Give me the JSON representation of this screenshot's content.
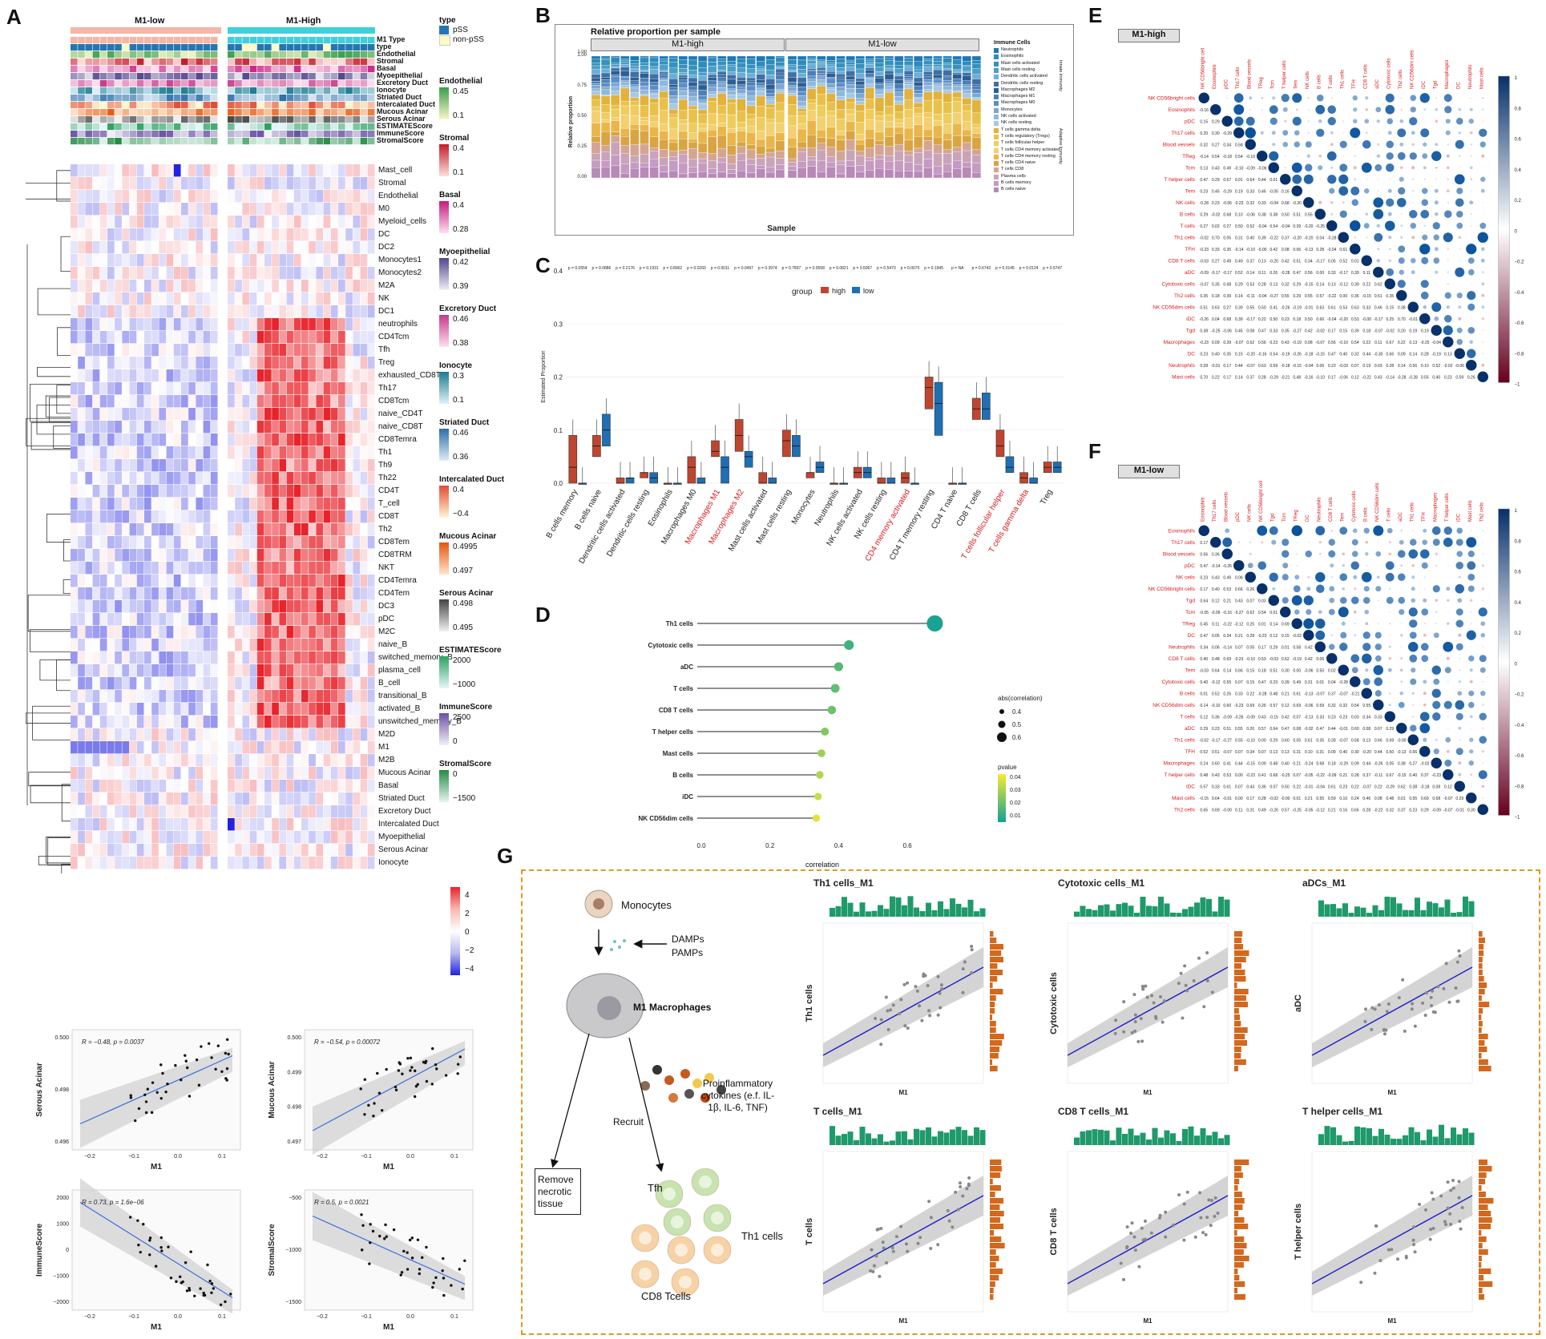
{
  "panels": {
    "A": "A",
    "B": "B",
    "C": "C",
    "D": "D",
    "E": "E",
    "F": "F",
    "G": "G"
  },
  "panelA": {
    "group_low": "M1-low",
    "group_high": "M1-High",
    "annotation_labels": [
      "M1 Type",
      "type",
      "Endothelial",
      "Stromal",
      "Basal",
      "Myoepithelial",
      "Excretory Duct",
      "Ionocyte",
      "Striated Duct",
      "Intercalated Duct",
      "Mucous Acinar",
      "Serous Acinar",
      "ESTIMATEScore",
      "ImmuneScore",
      "StromalScore"
    ],
    "row_labels": [
      "Mast_cell",
      "Stromal",
      "Endothelial",
      "M0",
      "Myeloid_cells",
      "DC",
      "DC2",
      "Monocytes1",
      "Monocytes2",
      "M2A",
      "NK",
      "DC1",
      "neutrophils",
      "CD4Tcm",
      "Tfh",
      "Treg",
      "exhausted_CD8T",
      "Th17",
      "CD8Tcm",
      "naive_CD4T",
      "naive_CD8T",
      "CD8Temra",
      "Th1",
      "Th9",
      "Th22",
      "CD4T",
      "T_cell",
      "CD8T",
      "Th2",
      "CD8Tem",
      "CD8TRM",
      "NKT",
      "CD4Temra",
      "CD4Tem",
      "DC3",
      "pDC",
      "M2C",
      "naive_B",
      "switched_memory_B",
      "plasma_cell",
      "B_cell",
      "transitional_B",
      "activated_B",
      "unswitched_memory_B",
      "M2D",
      "M1",
      "M2B",
      "Mucous Acinar",
      "Basal",
      "Striated Duct",
      "Excretory Duct",
      "Intercalated Duct",
      "Myoepithelial",
      "Serous Acinar",
      "Ionocyte"
    ],
    "legend": {
      "type_title": "type",
      "type_items": [
        "pSS",
        "non-pSS"
      ],
      "blocks": [
        {
          "title": "Endothelial",
          "hi": "0.45",
          "lo": "0.1",
          "c1": "#f7f7c8",
          "c2": "#3a9e4f"
        },
        {
          "title": "Stromal",
          "hi": "0.4",
          "lo": "0.1",
          "c1": "#fde0dd",
          "c2": "#c51b2a"
        },
        {
          "title": "Basal",
          "hi": "0.4",
          "lo": "0.28",
          "c1": "#fde0ef",
          "c2": "#c51b7d"
        },
        {
          "title": "Myoepithelial",
          "hi": "0.42",
          "lo": "0.39",
          "c1": "#efedf5",
          "c2": "#54478c"
        },
        {
          "title": "Excretory Duct",
          "hi": "0.46",
          "lo": "0.38",
          "c1": "#fde0ef",
          "c2": "#c5398a"
        },
        {
          "title": "Ionocyte",
          "hi": "0.3",
          "lo": "0.1",
          "c1": "#e0f3f8",
          "c2": "#1b7a8f"
        },
        {
          "title": "Striated Duct",
          "hi": "0.46",
          "lo": "0.36",
          "c1": "#deebf7",
          "c2": "#2b6fa8"
        },
        {
          "title": "Intercalated Duct",
          "hi": "0.4",
          "lo": "−0.4",
          "c1": "#fff7d6",
          "c2": "#e34a33"
        },
        {
          "title": "Mucous Acinar",
          "hi": "0.4995",
          "lo": "0.497",
          "c1": "#fee6ce",
          "c2": "#e6550d"
        },
        {
          "title": "Serous Acinar",
          "hi": "0.498",
          "lo": "0.495",
          "c1": "#f0f0f0",
          "c2": "#444444"
        },
        {
          "title": "ESTIMATEScore",
          "hi": "2000",
          "lo": "−1000",
          "c1": "#e5f5f9",
          "c2": "#2ca25f"
        },
        {
          "title": "ImmuneScore",
          "hi": "2500",
          "lo": "0",
          "c1": "#f2f0f7",
          "c2": "#6a51a3"
        },
        {
          "title": "StromalScore",
          "hi": "0",
          "lo": "−1500",
          "c1": "#e5f5f0",
          "c2": "#238b45"
        }
      ],
      "scale_ticks": [
        "4",
        "2",
        "0",
        "−2",
        "−4"
      ]
    },
    "scatter": [
      {
        "ylabel": "Serous Acinar",
        "xlabel": "M1",
        "stat": "R = −0.48, p = 0.0037",
        "yticks": [
          "0.500",
          "0.498",
          "0.496"
        ],
        "xticks": [
          "−0.2",
          "−0.1",
          "0.0",
          "0.1"
        ]
      },
      {
        "ylabel": "Mucous Acinar",
        "xlabel": "M1",
        "stat": "R = −0.54, p = 0.00072",
        "yticks": [
          "0.500",
          "0.499",
          "0.498",
          "0.497"
        ],
        "xticks": [
          "−0.2",
          "−0.1",
          "0.0",
          "0.1"
        ]
      },
      {
        "ylabel": "ImmuneScore",
        "xlabel": "M1",
        "stat": "R = 0.73, p = 1.6e−06",
        "yticks": [
          "2000",
          "1000",
          "0",
          "−1000",
          "−2000"
        ],
        "xticks": [
          "−0.2",
          "−0.1",
          "0.0",
          "0.1"
        ]
      },
      {
        "ylabel": "StromalScore",
        "xlabel": "M1",
        "stat": "R = 0.5, p = 0.0021",
        "yticks": [
          "−500",
          "−1000",
          "−1500"
        ],
        "xticks": [
          "−0.2",
          "−0.1",
          "0.0",
          "0.1"
        ]
      }
    ]
  },
  "panelB": {
    "title": "Relative proportion per sample",
    "facet_high": "M1-high",
    "facet_low": "M1-low",
    "ylabel": "Relative proportion",
    "xlabel": "Sample",
    "yticks": [
      "1.00",
      "0.75",
      "0.50",
      "0.25",
      "0.00"
    ],
    "legend_title": "Immune Cells",
    "legend_items": [
      "Neutrophils",
      "Eosinophils",
      "Mast cells activated",
      "Mast cells resting",
      "Dendritic cells activated",
      "Dendritic cells resting",
      "Macrophages M2",
      "Macrophages M1",
      "Macrophages M0",
      "Monocytes",
      "NK cells activated",
      "NK cells resting",
      "T cells gamma delta",
      "T cells regulatory (Tregs)",
      "T cells follicular helper",
      "T cells CD4 memory activated",
      "T cells CD4 memory resting",
      "T cells CD4 naive",
      "T cells CD8",
      "Plasma cells",
      "B cells memory",
      "B cells naive"
    ],
    "side_labels": [
      "Innate immunity",
      "Adaptive immunity"
    ]
  },
  "panelC": {
    "ylabel": "Estimated Proportion",
    "legend_title": "group",
    "legend_items": [
      "high",
      "low"
    ],
    "yticks": [
      "0.4",
      "0.3",
      "0.2",
      "0.1",
      "0.0"
    ],
    "pvals": [
      "p = 0.0554",
      "p = 0.0886",
      "p = 0.2176",
      "p = 0.1931",
      "p = 0.8962",
      "p = 0.0260",
      "p = 0.0011",
      "p = 0.0497",
      "p = 0.3974",
      "p = 0.7897",
      "p = 0.0558",
      "p = 0.0821",
      "p = 0.5067",
      "p = 0.5470",
      "p = 0.0075",
      "p = 0.1945",
      "p = NA",
      "p = 0.6743",
      "p = 0.0145",
      "p = 0.0124",
      "p = 0.5747"
    ],
    "categories": [
      "B cells memory",
      "B cells naive",
      "Dendritic cells activated",
      "Dendritic cells resting",
      "Eosinophils",
      "Macrophages M0",
      "Macrophages M1",
      "Macrophages M2",
      "Mast cells activated",
      "Mast cells resting",
      "Monocytes",
      "Neutrophils",
      "NK cells activated",
      "NK cells resting",
      "CD4 memory activated",
      "CD4 T memory resting",
      "CD4 T naive",
      "CD8 T cells",
      "T cells follicular helper",
      "T cells gamma delta",
      "Treg"
    ]
  },
  "panelD": {
    "xlabel": "correlation",
    "xticks": [
      "0.0",
      "0.2",
      "0.4",
      "0.6"
    ],
    "size_title": "abs(correlation)",
    "size_items": [
      "0.4",
      "0.5",
      "0.6"
    ],
    "color_title": "pvalue",
    "color_ticks": [
      "0.04",
      "0.03",
      "0.02",
      "0.01"
    ],
    "categories": [
      "Th1 cells",
      "Cytotoxic cells",
      "aDC",
      "T cells",
      "CD8 T cells",
      "T helper cells",
      "Mast cells",
      "B cells",
      "iDC",
      "NK CD56dim cells"
    ]
  },
  "panelE": {
    "title": "M1-high",
    "labels": [
      "NK CD56bright cells",
      "Eosinophils",
      "pDC",
      "Th17 cells",
      "Blood vessels",
      "TReg",
      "Tcm",
      "T helper cells",
      "Tem",
      "NK cells",
      "B cells",
      "T cells",
      "Th1 cells",
      "TFH",
      "CD8 T cells",
      "aDC",
      "Cytotoxic cells",
      "Th2 cells",
      "NK CD56dim cells",
      "iDC",
      "Tgd",
      "Macrophages",
      "DC",
      "Neutrophils",
      "Mast cells"
    ],
    "scale_ticks": [
      "1",
      "0.8",
      "0.6",
      "0.4",
      "0.2",
      "0",
      "−0.2",
      "−0.4",
      "−0.6",
      "−0.8",
      "−1"
    ]
  },
  "panelF": {
    "title": "M1-low",
    "labels": [
      "Eosinophils",
      "Th17 cells",
      "Blood vessels",
      "pDC",
      "NK cells",
      "NK CD56bright cells",
      "Tgd",
      "Tcm",
      "TReg",
      "DC",
      "Neutrophils",
      "CD8 T cells",
      "Tem",
      "Cytotoxic cells",
      "B cells",
      "NK CD56dim cells",
      "T cells",
      "aDC",
      "Th1 cells",
      "TFH",
      "Macrophages",
      "T helper cells",
      "iDC",
      "Mast cells",
      "Th2 cells"
    ],
    "scale_ticks": [
      "1",
      "0.8",
      "0.6",
      "0.4",
      "0.2",
      "0",
      "−0.2",
      "−0.4",
      "−0.6",
      "−0.8",
      "−1"
    ]
  },
  "panelG": {
    "monocytes": "Monocytes",
    "damps": "DAMPs",
    "pamps": "PAMPs",
    "m1": "M1 Macrophages",
    "cytokines": "Proinflammatory cytokines (e.f. IL-1β, IL-6, TNF)",
    "recruit": "Recruit",
    "remove": "Remove necrotic tissue",
    "tfh": "Tfh",
    "th1": "Th1 cells",
    "cd8": "CD8 Tcells",
    "plots": [
      {
        "title": "Th1 cells_M1",
        "ylabel": "Th1 cells"
      },
      {
        "title": "Cytotoxic cells_M1",
        "ylabel": "Cytotoxic cells"
      },
      {
        "title": "aDCs_M1",
        "ylabel": "aDC"
      },
      {
        "title": "T cells_M1",
        "ylabel": "T cells"
      },
      {
        "title": "CD8 T cells_M1",
        "ylabel": "CD8 T cells"
      },
      {
        "title": "T helper cells_M1",
        "ylabel": "T helper cells"
      }
    ],
    "xlabel": "M1"
  },
  "chart_data": [
    {
      "type": "bar",
      "id": "C-boxplot",
      "title": "",
      "ylabel": "Estimated Proportion",
      "ylim": [
        0,
        0.4
      ],
      "categories": [
        "B cells memory",
        "B cells naive",
        "Dendritic cells activated",
        "Dendritic cells resting",
        "Eosinophils",
        "Macrophages M0",
        "Macrophages M1",
        "Macrophages M2",
        "Mast cells activated",
        "Mast cells resting",
        "Monocytes",
        "Neutrophils",
        "NK cells activated",
        "NK cells resting",
        "CD4 memory activated",
        "CD4 T memory resting",
        "CD4 T naive",
        "CD8 T cells",
        "T cells follicular helper",
        "T cells gamma delta",
        "Treg"
      ],
      "series": [
        {
          "name": "high",
          "q1": [
            0.0,
            0.05,
            0.0,
            0.01,
            0.0,
            0.0,
            0.05,
            0.06,
            0.0,
            0.05,
            0.01,
            0.0,
            0.01,
            0.0,
            0.0,
            0.14,
            0.0,
            0.12,
            0.05,
            0.0,
            0.02
          ],
          "median": [
            0.03,
            0.07,
            0.0,
            0.02,
            0.0,
            0.03,
            0.06,
            0.09,
            0.0,
            0.08,
            0.02,
            0.0,
            0.02,
            0.0,
            0.01,
            0.18,
            0.0,
            0.14,
            0.07,
            0.01,
            0.03
          ],
          "q3": [
            0.09,
            0.09,
            0.01,
            0.02,
            0.0,
            0.05,
            0.08,
            0.12,
            0.02,
            0.1,
            0.02,
            0.0,
            0.03,
            0.01,
            0.02,
            0.2,
            0.0,
            0.16,
            0.1,
            0.02,
            0.04
          ]
        },
        {
          "name": "low",
          "q1": [
            0.0,
            0.07,
            0.0,
            0.0,
            0.0,
            0.0,
            0.0,
            0.03,
            0.0,
            0.05,
            0.02,
            0.0,
            0.01,
            0.0,
            0.0,
            0.09,
            0.0,
            0.12,
            0.02,
            0.0,
            0.02
          ],
          "median": [
            0.0,
            0.1,
            0.01,
            0.01,
            0.0,
            0.0,
            0.03,
            0.05,
            0.0,
            0.07,
            0.03,
            0.0,
            0.02,
            0.0,
            0.0,
            0.15,
            0.0,
            0.14,
            0.03,
            0.0,
            0.03
          ],
          "q3": [
            0.0,
            0.13,
            0.01,
            0.02,
            0.0,
            0.01,
            0.05,
            0.06,
            0.01,
            0.09,
            0.04,
            0.0,
            0.03,
            0.01,
            0.0,
            0.19,
            0.0,
            0.17,
            0.05,
            0.01,
            0.04
          ]
        }
      ]
    },
    {
      "type": "scatter",
      "id": "D-lollipop",
      "title": "",
      "xlabel": "correlation",
      "xlim": [
        0,
        0.7
      ],
      "categories": [
        "Th1 cells",
        "Cytotoxic cells",
        "aDC",
        "T cells",
        "CD8 T cells",
        "T helper cells",
        "Mast cells",
        "B cells",
        "iDC",
        "NK CD56dim cells"
      ],
      "values": [
        0.68,
        0.43,
        0.4,
        0.39,
        0.38,
        0.36,
        0.35,
        0.345,
        0.34,
        0.335
      ],
      "pvalue": [
        0.001,
        0.01,
        0.015,
        0.018,
        0.02,
        0.025,
        0.03,
        0.035,
        0.04,
        0.045
      ]
    }
  ]
}
